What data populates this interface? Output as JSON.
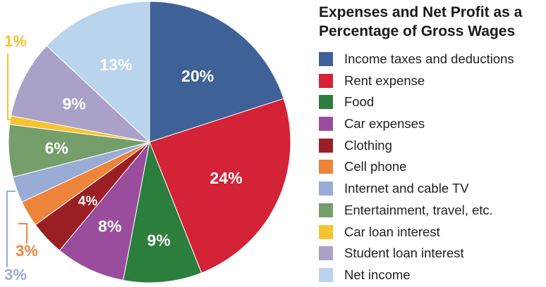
{
  "chart_data": {
    "type": "pie",
    "title": "Expenses and Net Profit as a Percentage of Gross Wages",
    "slices": [
      {
        "label": "Income taxes and deductions",
        "value": 20,
        "display": "20%",
        "color": "#3e6198"
      },
      {
        "label": "Rent expense",
        "value": 24,
        "display": "24%",
        "color": "#d42336"
      },
      {
        "label": "Food",
        "value": 9,
        "display": "9%",
        "color": "#2b7e3b"
      },
      {
        "label": "Car expenses",
        "value": 8,
        "display": "8%",
        "color": "#9a4d9d"
      },
      {
        "label": "Clothing",
        "value": 4,
        "display": "4%",
        "color": "#9a1f25"
      },
      {
        "label": "Cell phone",
        "value": 3,
        "display": "3%",
        "color": "#ee843a"
      },
      {
        "label": "Internet and cable TV",
        "value": 3,
        "display": "3%",
        "color": "#98acd5"
      },
      {
        "label": "Entertainment, travel, etc.",
        "value": 6,
        "display": "6%",
        "color": "#759e6b"
      },
      {
        "label": "Car loan interest",
        "value": 1,
        "display": "1%",
        "color": "#f6c331"
      },
      {
        "label": "Student loan interest",
        "value": 9,
        "display": "9%",
        "color": "#a9a1c7"
      },
      {
        "label": "Net income",
        "value": 13,
        "display": "13%",
        "color": "#b9d4ec"
      }
    ],
    "start_angle": "12 o'clock",
    "direction": "clockwise",
    "legend_position": "right"
  }
}
